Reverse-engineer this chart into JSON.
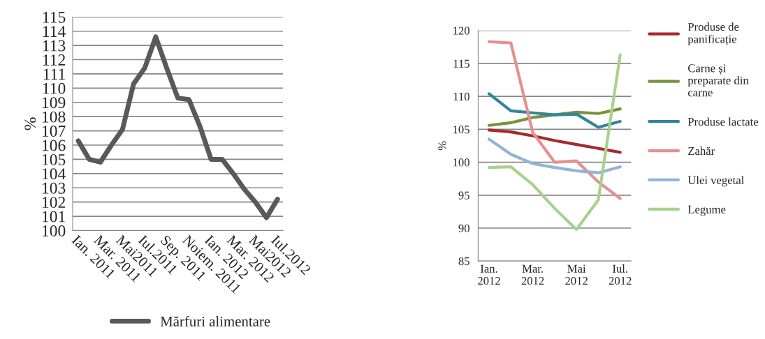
{
  "chart_data": [
    {
      "type": "line",
      "ylabel": "%",
      "categories": [
        "Ian. 2011",
        null,
        "Mar. 2011",
        null,
        "Mai2011",
        null,
        "Iul.2011",
        null,
        "Sep. 2011",
        null,
        "Noiem. 2011",
        null,
        "Ian. 2012",
        null,
        "Mar. 2012",
        null,
        "Mai2012",
        null,
        "Iul.2012"
      ],
      "series": [
        {
          "name": "Mărfuri alimentare",
          "color": "#595959",
          "values": [
            106.3,
            105.0,
            104.8,
            106.0,
            107.1,
            110.3,
            111.4,
            113.6,
            111.4,
            109.3,
            109.2,
            107.3,
            105.0,
            105.0,
            104.0,
            102.9,
            102.0,
            100.9,
            102.2
          ]
        }
      ],
      "ylim": [
        100,
        115
      ],
      "yticks": [
        100,
        101,
        102,
        103,
        104,
        105,
        106,
        107,
        108,
        109,
        110,
        111,
        112,
        113,
        114,
        115
      ],
      "grid": "y",
      "legend": "bottom",
      "marker": "none",
      "line_style": "solid"
    },
    {
      "type": "line",
      "ylabel": "%",
      "categories": [
        "Ian.\n2012",
        null,
        "Mar.\n2012",
        null,
        "Mai\n2012",
        null,
        "Iul.\n2012"
      ],
      "series": [
        {
          "name": "Produse de\npanificație",
          "color": "#a52a2e",
          "values": [
            104.9,
            104.6,
            104.0,
            103.3,
            102.7,
            102.1,
            101.5
          ]
        },
        {
          "name": "Carne și\npreparate din\ncarne",
          "color": "#77933c",
          "values": [
            105.6,
            106.0,
            106.8,
            107.2,
            107.6,
            107.4,
            108.1
          ]
        },
        {
          "name": "Produse lactate",
          "color": "#31859c",
          "values": [
            110.4,
            107.8,
            107.5,
            107.2,
            107.3,
            105.3,
            106.2
          ]
        },
        {
          "name": "Zahăr",
          "color": "#e6908f",
          "values": [
            118.3,
            118.1,
            104.5,
            100.0,
            100.2,
            97.0,
            94.5
          ]
        },
        {
          "name": "Ulei vegetal",
          "color": "#95b3d7",
          "values": [
            103.5,
            101.2,
            99.8,
            99.2,
            98.7,
            98.4,
            99.3
          ]
        },
        {
          "name": "Legume",
          "color": "#a9d18e",
          "values": [
            99.2,
            99.3,
            96.6,
            93.0,
            89.8,
            94.3,
            116.3
          ]
        }
      ],
      "ylim": [
        85,
        120
      ],
      "yticks": [
        85,
        90,
        95,
        100,
        105,
        110,
        115,
        120
      ],
      "grid": "y",
      "legend": "right",
      "marker": "none",
      "line_style": "solid"
    }
  ]
}
